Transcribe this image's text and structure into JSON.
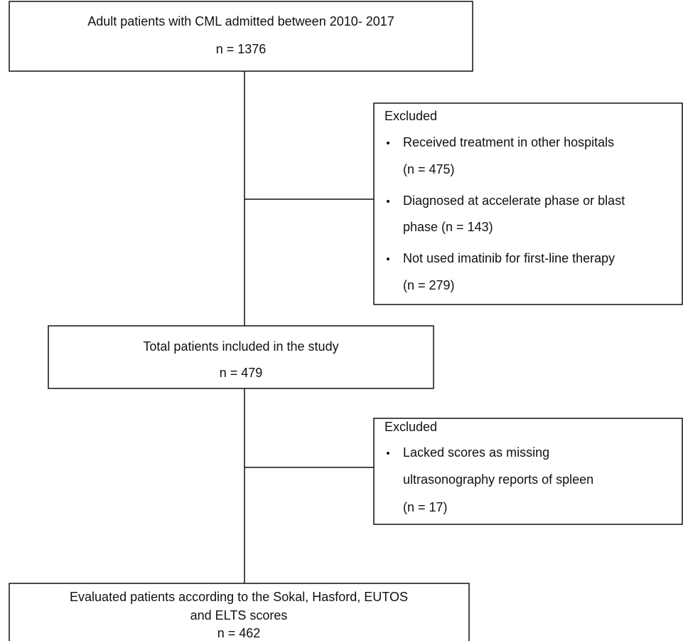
{
  "nodes": [
    {
      "lines": [
        "Adult patients with CML admitted between 2010- 2017",
        "n = 1376"
      ]
    },
    {
      "heading": "Excluded",
      "items": [
        [
          "Received treatment in other hospitals",
          "(n = 475)"
        ],
        [
          "Diagnosed at accelerate phase or blast",
          "phase (n = 143)"
        ],
        [
          "Not used imatinib for first-line therapy",
          "(n = 279)"
        ]
      ]
    },
    {
      "lines": [
        "Total patients included in the study",
        "n = 479"
      ]
    },
    {
      "heading": "Excluded",
      "items": [
        [
          "Lacked scores as missing",
          "ultrasonography reports of spleen",
          "(n = 17)"
        ]
      ]
    },
    {
      "lines": [
        "Evaluated patients according to the Sokal, Hasford, EUTOS",
        "and ELTS scores",
        "n = 462"
      ]
    }
  ]
}
